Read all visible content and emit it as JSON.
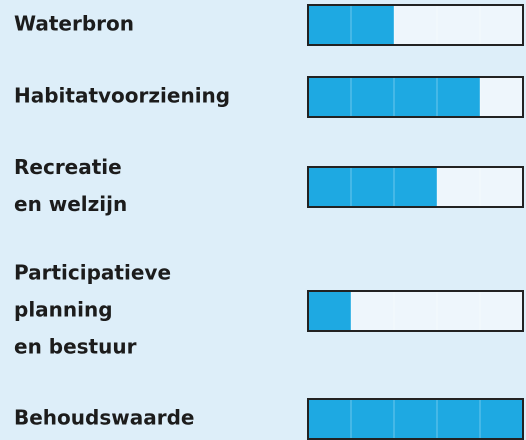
{
  "chart_data": {
    "type": "bar",
    "categories": [
      [
        "Waterbron"
      ],
      [
        "Habitatvoorziening"
      ],
      [
        "Recreatie",
        "en welzijn"
      ],
      [
        "Participatieve",
        "planning",
        "en bestuur"
      ],
      [
        "Behoudswaarde"
      ]
    ],
    "values": [
      2,
      4,
      3,
      1,
      5
    ],
    "xlim": [
      0,
      5
    ],
    "color": "#1ea9e2"
  }
}
